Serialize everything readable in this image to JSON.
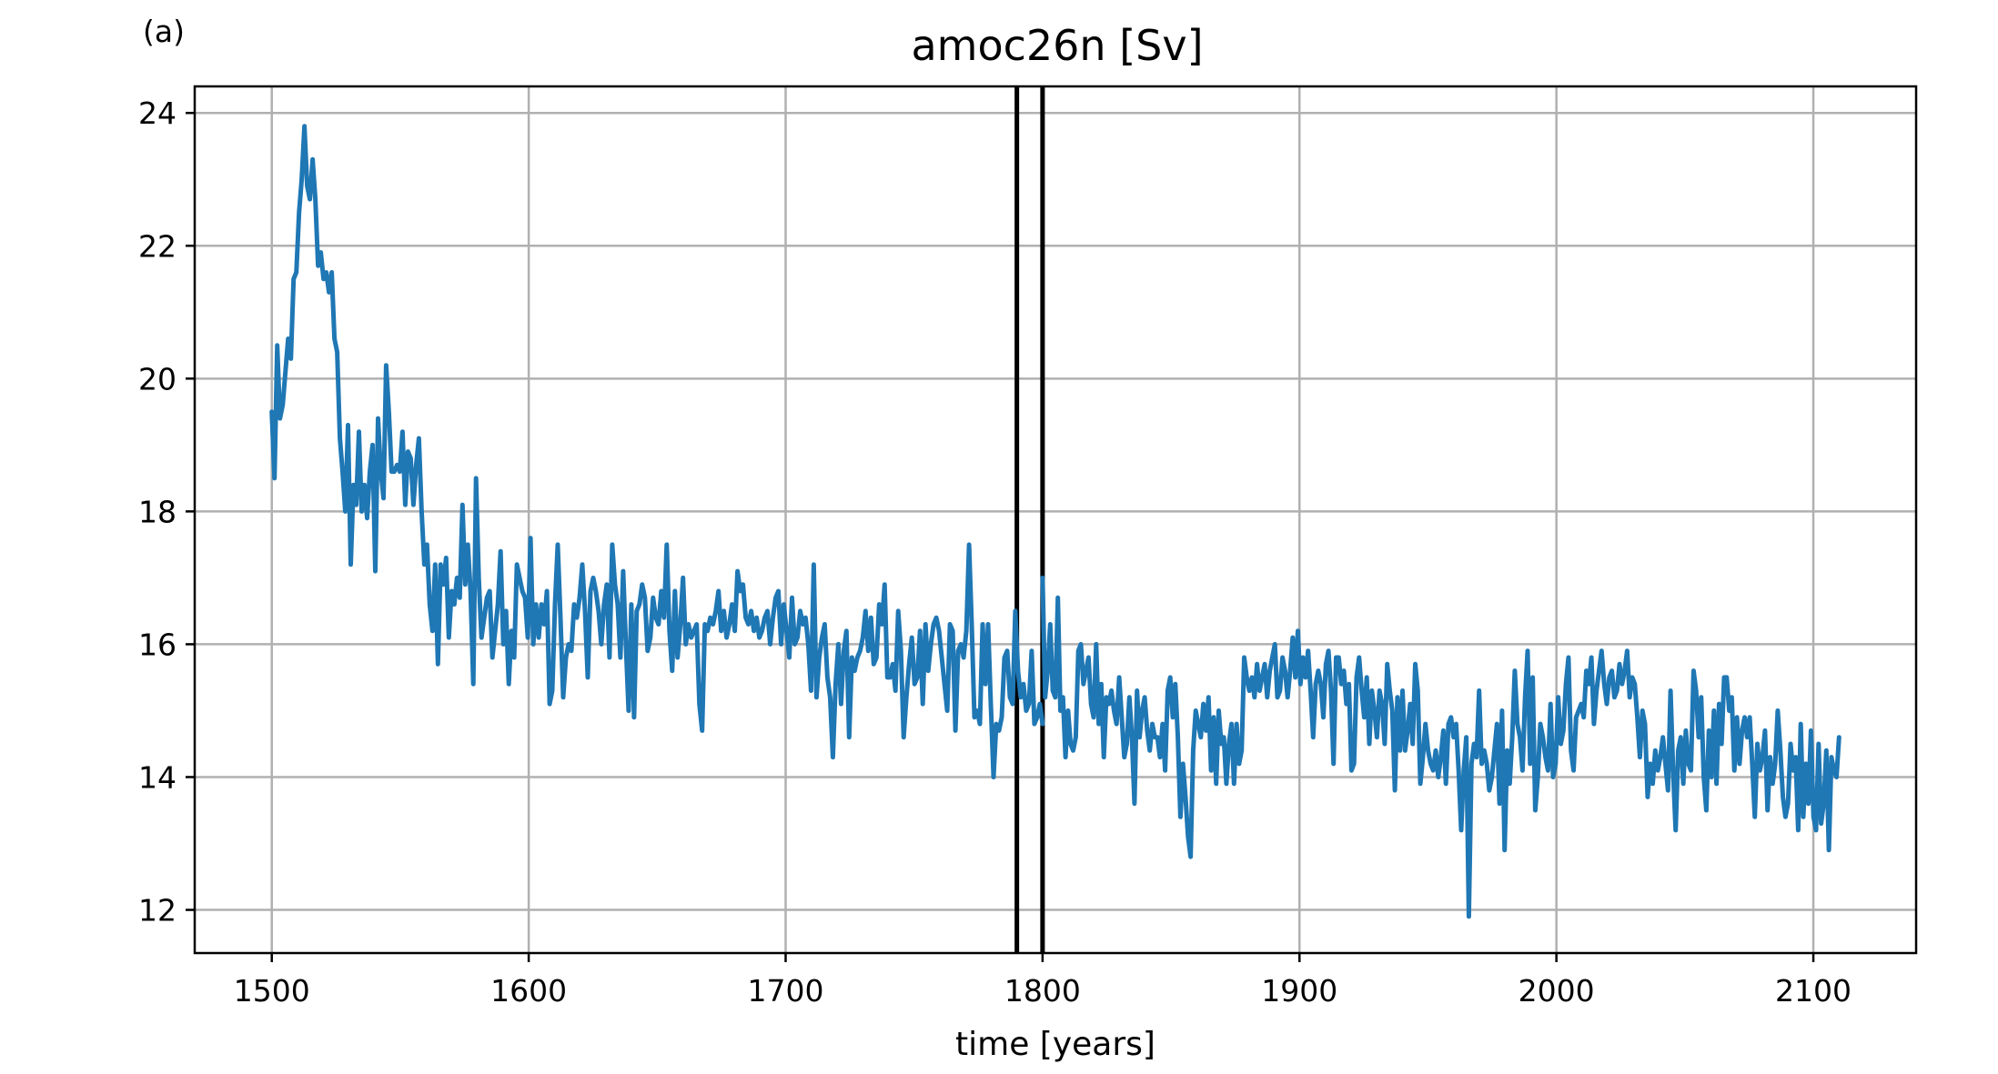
{
  "chart_data": {
    "type": "line",
    "panel_label": "(a)",
    "title": "amoc26n [Sv]",
    "xlabel": "time [years]",
    "ylabel": "",
    "xlim": [
      1470,
      2140
    ],
    "ylim": [
      11.35,
      24.4
    ],
    "xticks": [
      1500,
      1600,
      1700,
      1800,
      1900,
      2000,
      2100
    ],
    "yticks": [
      12,
      14,
      16,
      18,
      20,
      22,
      24
    ],
    "grid": true,
    "vertical_lines": [
      1790,
      1800
    ],
    "colors": {
      "series": "#1f77b4",
      "vertical_lines": "#000000",
      "grid": "#b0b0b0"
    },
    "series": [
      {
        "values_start_year": 1500,
        "values": [
          19.5,
          18.5,
          20.5,
          19.4,
          19.6,
          20.1,
          20.6,
          20.3,
          21.5,
          21.6,
          22.5,
          23.0,
          23.8,
          22.9,
          22.7,
          23.3,
          22.7,
          21.7,
          21.9,
          21.5,
          21.6,
          21.3,
          21.6,
          20.6,
          20.4,
          19.1,
          18.6,
          18.0,
          19.3,
          17.2,
          18.4,
          18.1,
          19.2,
          18.0,
          18.4,
          17.9,
          18.6,
          19.0,
          17.1,
          19.4,
          18.6,
          18.2,
          20.2,
          19.5,
          18.6,
          18.6,
          18.7,
          18.6,
          19.2,
          18.1,
          18.9,
          18.8,
          18.1,
          18.7,
          19.1,
          18.0,
          17.2,
          17.5,
          16.6,
          16.2,
          17.2,
          15.7,
          17.2,
          16.9,
          17.3,
          16.1,
          16.8,
          16.6,
          17.0,
          16.7,
          18.1,
          16.9,
          17.5,
          16.8,
          15.4,
          18.5,
          17.0,
          16.1,
          16.4,
          16.7,
          16.8,
          15.8,
          16.2,
          16.6,
          17.4,
          16.0,
          16.5,
          15.4,
          16.2,
          15.8,
          17.2,
          17.0,
          16.8,
          16.7,
          16.1,
          17.6,
          16.0,
          16.6,
          16.1,
          16.6,
          16.3,
          16.8,
          15.1,
          15.3,
          16.6,
          17.5,
          16.4,
          15.2,
          15.8,
          16.0,
          15.9,
          16.6,
          16.4,
          16.7,
          17.2,
          16.5,
          15.5,
          16.8,
          17.0,
          16.8,
          16.5,
          16.0,
          16.6,
          16.9,
          15.8,
          17.5,
          16.9,
          16.6,
          15.8,
          17.1,
          16.0,
          15.0,
          16.6,
          14.9,
          16.5,
          16.6,
          16.9,
          16.7,
          15.9,
          16.1,
          16.7,
          16.4,
          16.3,
          16.8,
          16.4,
          17.5,
          16.2,
          15.6,
          16.8,
          15.8,
          16.3,
          17.0,
          16.0,
          16.3,
          16.1,
          16.2,
          16.3,
          15.1,
          14.7,
          16.3,
          16.2,
          16.4,
          16.3,
          16.5,
          16.8,
          16.2,
          16.5,
          16.1,
          16.3,
          16.6,
          16.2,
          17.1,
          16.8,
          16.9,
          16.4,
          16.3,
          16.5,
          16.2,
          16.4,
          16.1,
          16.2,
          16.4,
          16.5,
          16.0,
          16.4,
          16.7,
          16.8,
          16.0,
          16.6,
          16.2,
          15.8,
          16.7,
          16.0,
          16.1,
          16.5,
          16.3,
          16.4,
          16.0,
          15.3,
          17.2,
          15.2,
          15.8,
          16.1,
          16.3,
          15.5,
          15.2,
          14.3,
          15.4,
          16.0,
          15.1,
          15.9,
          16.2,
          14.6,
          15.8,
          15.6,
          15.8,
          15.9,
          16.1,
          16.5,
          15.9,
          16.4,
          15.7,
          15.8,
          16.6,
          16.3,
          16.9,
          15.5,
          15.5,
          15.7,
          15.3,
          16.5,
          15.9,
          14.6,
          15.2,
          15.7,
          16.1,
          15.4,
          15.5,
          16.2,
          15.1,
          16.3,
          15.6,
          16.0,
          16.3,
          16.4,
          16.2,
          15.8,
          15.4,
          15.0,
          16.3,
          16.2,
          14.7,
          15.9,
          16.0,
          15.8,
          16.2,
          17.5,
          16.3,
          14.9,
          15.0,
          14.8,
          16.3,
          15.4,
          16.3,
          15.1,
          14.0,
          14.8,
          14.7,
          14.9,
          15.8,
          15.9,
          15.2,
          15.1,
          16.5,
          15.6,
          15.2,
          15.4,
          15.0,
          15.1,
          15.9,
          14.8,
          14.9,
          15.1,
          14.8
        ],
        "values_end_year": 1800
      },
      {
        "values_start_year": 1800,
        "values": [
          17.0,
          15.2,
          15.6,
          16.3,
          15.3,
          15.2,
          16.7,
          15.0,
          15.2,
          14.3,
          15.0,
          14.5,
          14.4,
          14.6,
          15.9,
          16.0,
          15.4,
          15.6,
          15.8,
          15.1,
          14.9,
          16.0,
          14.8,
          15.4,
          14.3,
          15.2,
          15.1,
          15.3,
          15.0,
          14.8,
          15.5,
          14.9,
          14.3,
          14.5,
          15.2,
          14.6,
          13.6,
          15.3,
          14.6,
          15.0,
          15.2,
          14.7,
          14.4,
          14.8,
          14.6,
          14.6,
          14.3,
          14.8,
          14.1,
          15.3,
          15.5,
          14.9,
          15.4,
          14.6,
          13.4,
          14.2,
          13.7,
          13.1,
          12.8,
          14.4,
          15.0,
          14.8,
          14.6,
          15.1,
          14.7,
          15.2,
          14.1,
          14.9,
          13.9,
          15.0,
          14.5,
          14.6,
          13.9,
          14.5,
          14.8,
          13.9,
          14.8,
          14.2,
          14.4,
          15.8,
          15.5,
          15.3,
          15.5,
          15.2,
          15.7,
          15.3,
          15.5,
          15.7,
          15.2,
          15.6,
          15.8,
          16.0,
          15.2,
          15.3,
          15.8,
          15.6,
          15.2,
          15.6,
          16.1,
          15.5,
          16.2,
          15.4,
          15.8,
          15.5,
          15.9,
          15.3,
          14.6,
          15.4,
          15.6,
          15.4,
          14.9,
          15.7,
          15.9,
          15.3,
          14.2,
          15.8,
          15.8,
          15.4,
          15.6,
          15.1,
          15.4,
          14.1,
          14.2,
          15.5,
          15.8,
          15.3,
          14.9,
          15.5,
          14.5,
          15.3,
          15.0,
          14.6,
          15.3,
          15.1,
          14.5,
          15.7,
          15.3,
          15.0,
          13.8,
          15.2,
          14.4,
          15.3,
          14.4,
          14.7,
          15.1,
          14.5,
          15.7,
          15.3,
          13.9,
          14.3,
          14.8,
          14.4,
          14.2,
          14.1,
          14.4,
          14.0,
          14.3,
          14.7,
          13.9,
          14.8,
          14.9,
          14.6,
          14.8,
          14.1,
          13.2,
          14.1,
          14.6,
          11.9,
          14.2,
          14.5,
          14.3,
          15.3,
          14.2,
          14.4,
          14.2,
          13.8,
          14.0,
          14.4,
          14.8,
          13.6,
          15.0,
          12.9,
          14.4,
          13.9,
          14.6,
          15.6,
          14.8,
          14.6,
          14.1,
          15.2,
          15.9,
          14.2,
          15.5,
          13.5,
          14.0,
          14.8,
          14.6,
          14.3,
          14.1,
          15.1,
          14.0,
          14.2,
          15.2,
          14.5,
          14.7,
          15.4,
          15.8,
          14.4,
          14.1,
          14.9,
          15.0,
          15.1,
          14.9,
          15.6,
          15.4,
          15.8,
          14.8,
          15.3,
          15.6,
          15.9,
          15.4,
          15.1,
          15.5,
          15.6,
          15.2,
          15.3,
          15.7,
          15.4,
          15.6,
          15.9,
          15.2,
          15.5,
          15.4,
          14.9,
          14.3,
          15.0,
          14.8,
          13.7,
          14.2,
          13.9,
          14.4,
          14.1,
          14.3,
          14.6,
          14.2,
          13.8,
          15.3,
          14.1,
          13.2,
          14.4,
          14.6,
          13.9,
          14.7,
          14.2,
          14.1,
          15.6,
          15.3,
          14.6,
          15.2,
          14.0,
          13.5,
          14.7,
          14.0,
          15.0,
          13.9,
          15.1,
          14.5,
          15.5,
          15.5,
          15.0,
          15.2,
          14.1,
          14.9,
          14.2,
          14.7,
          14.9,
          14.6,
          14.9,
          14.2,
          13.4,
          14.5,
          14.1,
          14.3,
          14.7,
          13.5,
          14.3,
          13.9,
          14.2,
          15.0,
          14.4,
          13.7,
          13.4,
          13.6,
          14.5,
          14.1,
          14.3,
          13.2,
          14.8,
          13.4,
          14.2,
          13.6,
          14.7,
          13.4,
          13.2,
          14.5,
          13.3,
          13.6,
          14.4,
          12.9,
          14.3,
          14.1,
          14.0,
          14.6
        ],
        "values_end_year": 2110
      }
    ]
  }
}
